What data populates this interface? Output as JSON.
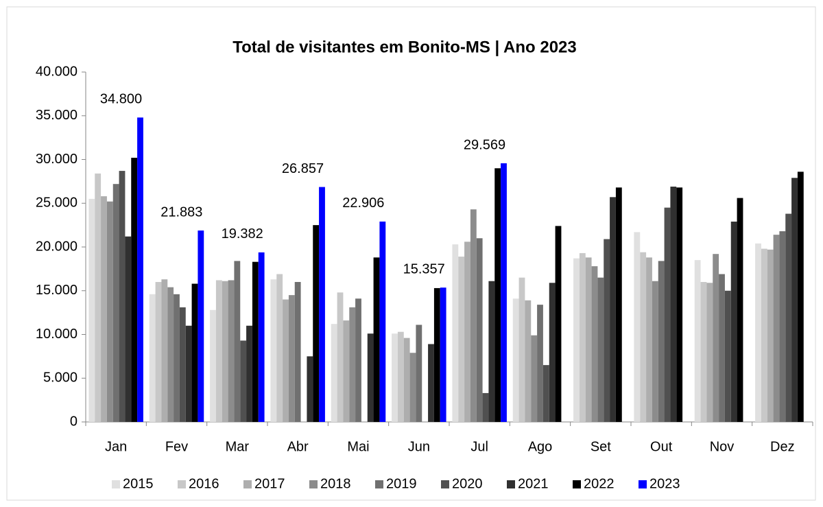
{
  "chart_data": {
    "type": "bar",
    "title": "Total de visitantes em Bonito-MS | Ano 2023",
    "categories": [
      "Jan",
      "Fev",
      "Mar",
      "Abr",
      "Mai",
      "Jun",
      "Jul",
      "Ago",
      "Set",
      "Out",
      "Nov",
      "Dez"
    ],
    "series": [
      {
        "name": "2015",
        "color": "#e0e0e0",
        "values": [
          25500,
          14600,
          12800,
          16300,
          11200,
          10100,
          20300,
          14100,
          18700,
          21700,
          18500,
          20400
        ]
      },
      {
        "name": "2016",
        "color": "#c8c8c8",
        "values": [
          28400,
          16000,
          16200,
          16900,
          14800,
          10300,
          18900,
          16500,
          19300,
          19400,
          16000,
          19800
        ]
      },
      {
        "name": "2017",
        "color": "#aeaeae",
        "values": [
          25800,
          16300,
          16100,
          14000,
          11600,
          9600,
          20600,
          13900,
          18800,
          18800,
          15900,
          19700
        ]
      },
      {
        "name": "2018",
        "color": "#8c8c8c",
        "values": [
          25200,
          15400,
          16200,
          14500,
          13100,
          7900,
          24300,
          9900,
          17800,
          16100,
          19200,
          21400
        ]
      },
      {
        "name": "2019",
        "color": "#707070",
        "values": [
          27200,
          14600,
          18400,
          16000,
          14100,
          11100,
          21000,
          13400,
          16500,
          18400,
          16900,
          21800
        ]
      },
      {
        "name": "2020",
        "color": "#505050",
        "values": [
          28700,
          13100,
          9300,
          null,
          null,
          null,
          3300,
          6500,
          20900,
          24500,
          15000,
          23800
        ]
      },
      {
        "name": "2021",
        "color": "#303030",
        "values": [
          21200,
          11000,
          11000,
          7500,
          10100,
          8900,
          16100,
          15900,
          25700,
          26900,
          22900,
          27900
        ]
      },
      {
        "name": "2022",
        "color": "#000000",
        "values": [
          30200,
          15800,
          18300,
          22500,
          18800,
          15300,
          29000,
          22400,
          26800,
          26800,
          25600,
          28600
        ]
      },
      {
        "name": "2023",
        "color": "#0000ff",
        "values": [
          34800,
          21883,
          19382,
          26857,
          22906,
          15357,
          29569,
          null,
          null,
          null,
          null,
          null
        ],
        "value_labels": [
          "34.800",
          "21.883",
          "19.382",
          "26.857",
          "22.906",
          "15.357",
          "29.569",
          null,
          null,
          null,
          null,
          null
        ]
      }
    ],
    "ylim": [
      0,
      40000
    ],
    "yticks": [
      0,
      {
        "value": 5000,
        "label": "5.000"
      },
      {
        "value": 10000,
        "label": "10.000"
      },
      {
        "value": 15000,
        "label": "15.000"
      },
      {
        "value": 20000,
        "label": "20.000"
      },
      {
        "value": 25000,
        "label": "25.000"
      },
      {
        "value": 30000,
        "label": "30.000"
      },
      {
        "value": 35000,
        "label": "35.000"
      },
      {
        "value": 40000,
        "label": "40.000"
      }
    ],
    "legend": "bottom"
  }
}
